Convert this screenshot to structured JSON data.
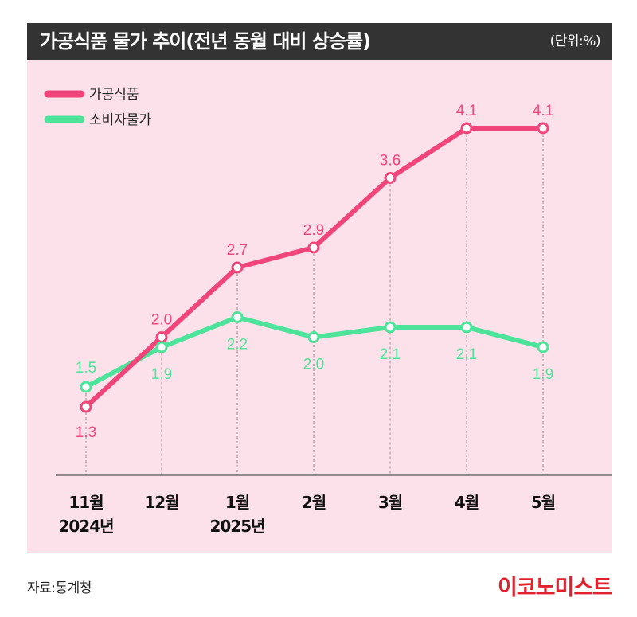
{
  "header": {
    "title": "가공식품 물가 추이(전년 동월 대비 상승률)",
    "unit": "(단위:%)"
  },
  "source": "자료:통계청",
  "brand": "이코노미스트",
  "chart_data": {
    "type": "line",
    "title": "가공식품 물가 추이(전년 동월 대비 상승률)",
    "unit": "%",
    "categories": [
      {
        "month": "11월",
        "year": "2024년"
      },
      {
        "month": "12월",
        "year": ""
      },
      {
        "month": "1월",
        "year": "2025년"
      },
      {
        "month": "2월",
        "year": ""
      },
      {
        "month": "3월",
        "year": ""
      },
      {
        "month": "4월",
        "year": ""
      },
      {
        "month": "5월",
        "year": ""
      }
    ],
    "series": [
      {
        "name": "가공식품",
        "color": "#f0457a",
        "values": [
          1.3,
          2.0,
          2.7,
          2.9,
          3.6,
          4.1,
          4.1
        ],
        "labels": [
          "1.3",
          "2.0",
          "2.7",
          "2.9",
          "3.6",
          "4.1",
          "4.1"
        ]
      },
      {
        "name": "소비자물가",
        "color": "#4ee39a",
        "values": [
          1.5,
          1.9,
          2.2,
          2.0,
          2.1,
          2.1,
          1.9
        ],
        "labels": [
          "1.5",
          "1.9",
          "2.2",
          "2.0",
          "2.1",
          "2.1",
          "1.9"
        ]
      }
    ],
    "grid": "vertical dashed guides",
    "legend_position": "top-left"
  }
}
